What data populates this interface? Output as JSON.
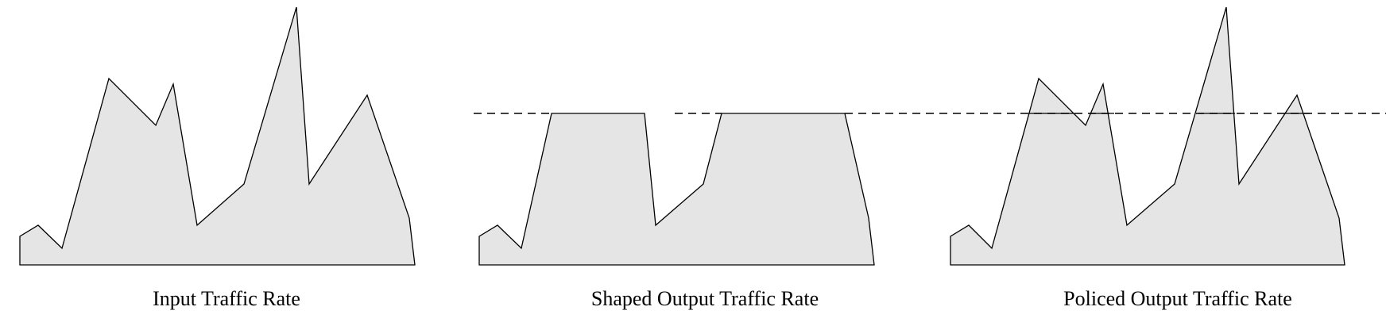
{
  "panels": {
    "input": {
      "caption": "Input Traffic Rate"
    },
    "shaped": {
      "caption": "Shaped Output Traffic Rate"
    },
    "policed": {
      "caption": "Policed Output Traffic Rate"
    }
  },
  "colors": {
    "fill": "#e5e5e5",
    "stroke": "#000000"
  }
}
